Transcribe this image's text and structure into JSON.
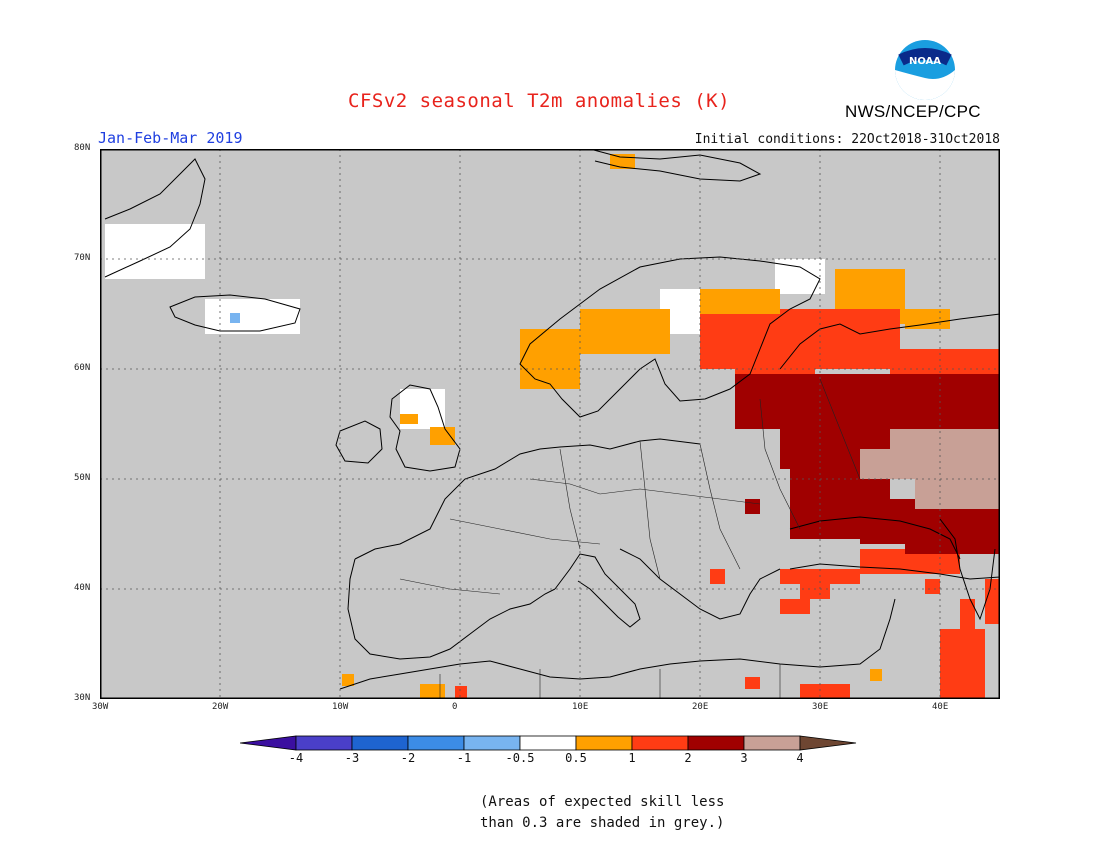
{
  "header": {
    "title": "CFSv2 seasonal T2m anomalies (K)",
    "season": "Jan-Feb-Mar 2019",
    "initial_conditions": "Initial conditions: 22Oct2018-31Oct2018",
    "agency": "NWS/NCEP/CPC",
    "logo_text": "NOAA"
  },
  "map": {
    "lon_ticks": [
      "30W",
      "20W",
      "10W",
      "0",
      "10E",
      "20E",
      "30E",
      "40E"
    ],
    "lat_ticks": [
      "30N",
      "40N",
      "50N",
      "60N",
      "70N",
      "80N"
    ],
    "extent": {
      "lon": [
        -30,
        45
      ],
      "lat": [
        30,
        80
      ]
    },
    "grid": true,
    "background_color": "#c8c8c8"
  },
  "colorbar": {
    "labels": [
      "-4",
      "-3",
      "-2",
      "-1",
      "-0.5",
      "0.5",
      "1",
      "2",
      "3",
      "4"
    ],
    "colors": [
      "#3b0fa0",
      "#4a3fc8",
      "#1e64d0",
      "#3c8ce6",
      "#78b4f0",
      "#ffffff",
      "#ffa000",
      "#ff3c14",
      "#a00000",
      "#c8a096",
      "#6e4632"
    ]
  },
  "note": {
    "line1": "(Areas of expected skill less",
    "line2": "than 0.3 are shaded in grey.)"
  }
}
